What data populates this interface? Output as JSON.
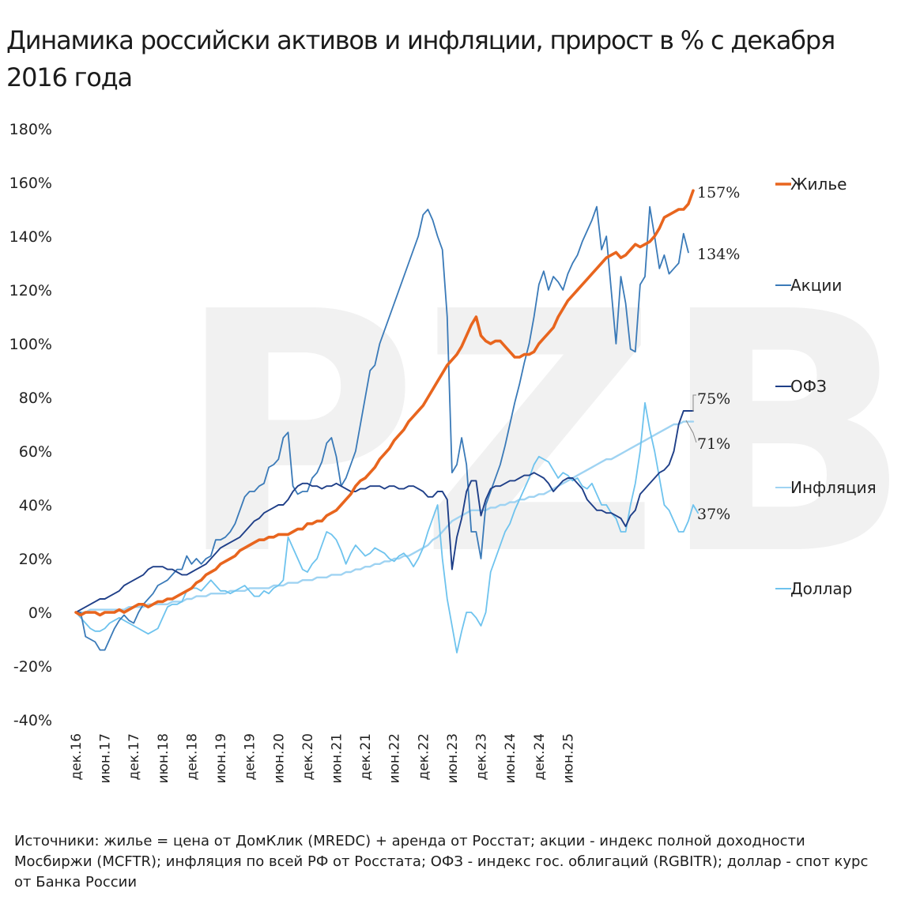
{
  "title": "Динамика российски активов и инфляции, прирост в % с декабря 2016 года",
  "source": "Источники: жилье = цена от ДомКлик (MREDC) + аренда от Росстат; акции - индекс полной доходности Мосбиржи (MCFTR); инфляция по всей РФ от Росстата; ОФЗ - индекс гос. облигаций (RGBITR); доллар - спот курс от Банка России",
  "watermark": "PZB",
  "chart_data": {
    "type": "line",
    "ylim": [
      -40,
      180
    ],
    "yticks": [
      -40,
      -20,
      0,
      20,
      40,
      60,
      80,
      100,
      120,
      140,
      160,
      180
    ],
    "ytick_labels": [
      "-40%",
      "-20%",
      "0%",
      "20%",
      "40%",
      "60%",
      "80%",
      "100%",
      "120%",
      "140%",
      "160%",
      "180%"
    ],
    "x_tick_labels": [
      "дек.16",
      "июн.17",
      "дек.17",
      "июн.18",
      "дек.18",
      "июн.19",
      "дек.19",
      "июн.20",
      "дек.20",
      "июн.21",
      "дек.21",
      "июн.22",
      "дек.22",
      "июн.23",
      "дек.23",
      "июн.24",
      "дек.24",
      "июн.25"
    ],
    "x_start": "дек.16",
    "x_step_months": 1,
    "legend_position": "right",
    "end_labels": {
      "housing": "157%",
      "stocks": "134%",
      "ofz": "75%",
      "inflation": "71%",
      "dollar": "37%"
    },
    "series": [
      {
        "key": "housing",
        "name": "Жилье",
        "color": "#e8651e",
        "width": 3.6,
        "values": [
          0,
          -1,
          0,
          0,
          0,
          -1,
          0,
          0,
          0,
          1,
          0,
          1,
          2,
          3,
          3,
          2,
          3,
          4,
          4,
          5,
          5,
          6,
          7,
          8,
          9,
          11,
          12,
          14,
          15,
          16,
          18,
          19,
          20,
          21,
          23,
          24,
          25,
          26,
          27,
          27,
          28,
          28,
          29,
          29,
          29,
          30,
          31,
          31,
          33,
          33,
          34,
          34,
          36,
          37,
          38,
          40,
          42,
          44,
          47,
          49,
          50,
          52,
          54,
          57,
          59,
          61,
          64,
          66,
          68,
          71,
          73,
          75,
          77,
          80,
          83,
          86,
          89,
          92,
          94,
          96,
          99,
          103,
          107,
          110,
          103,
          101,
          100,
          101,
          101,
          99,
          97,
          95,
          95,
          96,
          96,
          97,
          100,
          102,
          104,
          106,
          110,
          113,
          116,
          118,
          120,
          122,
          124,
          126,
          128,
          130,
          132,
          133,
          134,
          132,
          133,
          135,
          137,
          136,
          137,
          138,
          140,
          143,
          147,
          148,
          149,
          150,
          150,
          152,
          157
        ]
      },
      {
        "key": "stocks",
        "name": "Акции",
        "color": "#3a7ab8",
        "width": 1.8,
        "values": [
          0,
          0,
          -9,
          -10,
          -11,
          -14,
          -14,
          -10,
          -6,
          -3,
          -1,
          -3,
          -4,
          0,
          3,
          5,
          7,
          10,
          11,
          12,
          14,
          16,
          16,
          21,
          18,
          20,
          18,
          20,
          21,
          27,
          27,
          28,
          30,
          33,
          38,
          43,
          45,
          45,
          47,
          48,
          54,
          55,
          57,
          65,
          67,
          47,
          44,
          45,
          45,
          50,
          52,
          56,
          63,
          65,
          58,
          47,
          50,
          55,
          60,
          70,
          80,
          90,
          92,
          100,
          105,
          110,
          115,
          120,
          125,
          130,
          135,
          140,
          148,
          150,
          146,
          140,
          135,
          110,
          52,
          55,
          65,
          55,
          30,
          30,
          20,
          40,
          45,
          50,
          55,
          62,
          70,
          78,
          85,
          93,
          100,
          110,
          122,
          127,
          120,
          125,
          123,
          120,
          126,
          130,
          133,
          138,
          142,
          146,
          151,
          135,
          140,
          120,
          100,
          125,
          115,
          98,
          97,
          122,
          125,
          151,
          140,
          128,
          133,
          126,
          128,
          130,
          141,
          134
        ]
      },
      {
        "key": "ofz",
        "name": "ОФЗ",
        "color": "#1f3f88",
        "width": 1.9,
        "values": [
          0,
          1,
          2,
          3,
          4,
          5,
          5,
          6,
          7,
          8,
          10,
          11,
          12,
          13,
          14,
          16,
          17,
          17,
          17,
          16,
          16,
          15,
          14,
          14,
          15,
          16,
          17,
          18,
          20,
          22,
          24,
          25,
          26,
          27,
          28,
          30,
          32,
          34,
          35,
          37,
          38,
          39,
          40,
          40,
          42,
          45,
          47,
          48,
          48,
          47,
          47,
          46,
          47,
          47,
          48,
          47,
          46,
          45,
          45,
          46,
          46,
          47,
          47,
          47,
          46,
          47,
          47,
          46,
          46,
          47,
          47,
          46,
          45,
          43,
          43,
          45,
          45,
          42,
          16,
          28,
          35,
          45,
          49,
          49,
          36,
          42,
          46,
          47,
          47,
          48,
          49,
          49,
          50,
          51,
          51,
          52,
          51,
          50,
          48,
          45,
          47,
          49,
          50,
          50,
          48,
          46,
          42,
          40,
          38,
          38,
          37,
          37,
          36,
          35,
          32,
          36,
          38,
          44,
          46,
          48,
          50,
          52,
          53,
          55,
          60,
          70,
          75,
          75,
          75
        ]
      },
      {
        "key": "inflation",
        "name": "Инфляция",
        "color": "#9fd3f2",
        "width": 2.4,
        "values": [
          0,
          0,
          0,
          1,
          1,
          1,
          1,
          1,
          1,
          1,
          1,
          2,
          2,
          2,
          2,
          3,
          3,
          3,
          3,
          3,
          4,
          4,
          4,
          5,
          5,
          6,
          6,
          6,
          7,
          7,
          7,
          7,
          8,
          8,
          8,
          8,
          9,
          9,
          9,
          9,
          9,
          10,
          10,
          10,
          11,
          11,
          11,
          12,
          12,
          12,
          13,
          13,
          13,
          14,
          14,
          14,
          15,
          15,
          16,
          16,
          17,
          17,
          18,
          18,
          19,
          19,
          20,
          20,
          21,
          21,
          22,
          23,
          24,
          25,
          27,
          28,
          30,
          32,
          34,
          35,
          36,
          37,
          38,
          38,
          38,
          38,
          39,
          39,
          40,
          40,
          41,
          41,
          42,
          42,
          43,
          43,
          44,
          44,
          45,
          46,
          47,
          48,
          49,
          50,
          51,
          52,
          53,
          54,
          55,
          56,
          57,
          57,
          58,
          59,
          60,
          61,
          62,
          63,
          64,
          65,
          66,
          67,
          68,
          69,
          70,
          70,
          71,
          71,
          71
        ]
      },
      {
        "key": "dollar",
        "name": "Доллар",
        "color": "#6ec3ee",
        "width": 1.8,
        "values": [
          0,
          -2,
          -4,
          -6,
          -7,
          -7,
          -6,
          -4,
          -3,
          -2,
          -3,
          -4,
          -5,
          -6,
          -7,
          -8,
          -7,
          -6,
          -2,
          2,
          3,
          3,
          4,
          8,
          9,
          9,
          8,
          10,
          12,
          10,
          8,
          8,
          7,
          8,
          9,
          10,
          8,
          6,
          6,
          8,
          7,
          9,
          10,
          12,
          28,
          24,
          20,
          16,
          15,
          18,
          20,
          25,
          30,
          29,
          27,
          23,
          18,
          22,
          25,
          23,
          21,
          22,
          24,
          23,
          22,
          20,
          19,
          21,
          22,
          20,
          17,
          20,
          24,
          30,
          35,
          40,
          20,
          5,
          -5,
          -15,
          -7,
          0,
          0,
          -2,
          -5,
          0,
          15,
          20,
          25,
          30,
          33,
          38,
          42,
          46,
          50,
          55,
          58,
          57,
          56,
          53,
          50,
          52,
          51,
          49,
          50,
          47,
          46,
          48,
          44,
          40,
          40,
          37,
          35,
          30,
          30,
          40,
          48,
          60,
          78,
          68,
          60,
          50,
          40,
          38,
          34,
          30,
          30,
          34,
          40,
          37
        ]
      }
    ]
  }
}
